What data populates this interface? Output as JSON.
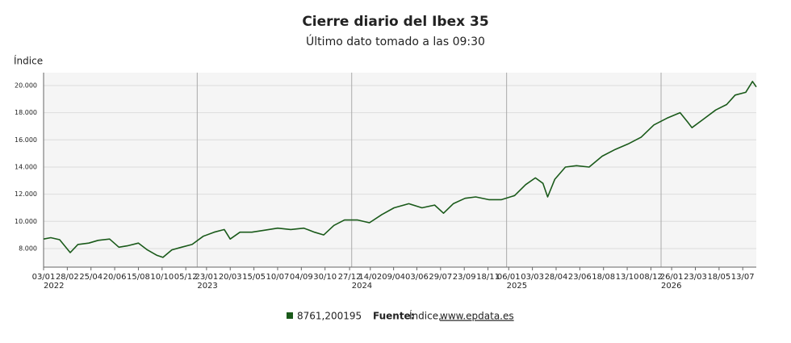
{
  "chart_data": {
    "type": "line",
    "title": "Cierre diario del Ibex 35",
    "subtitle": "Último dato tomado a las 09:30",
    "y_label": "Índice",
    "xlim": [
      "2022-01-03",
      "2026-08-14"
    ],
    "ylim": [
      6630,
      20950
    ],
    "yticks": [
      {
        "value": 8000,
        "label": "8.000"
      },
      {
        "value": 10000,
        "label": "10.000"
      },
      {
        "value": 12000,
        "label": "12.000"
      },
      {
        "value": 14000,
        "label": "14.000"
      },
      {
        "value": 16000,
        "label": "16.000"
      },
      {
        "value": 18000,
        "label": "18.000"
      },
      {
        "value": 20000,
        "label": "20.000"
      }
    ],
    "xticks": [
      {
        "value": "2022-01-03",
        "label": "03/01"
      },
      {
        "value": "2022-02-28",
        "label": "28/02"
      },
      {
        "value": "2022-04-25",
        "label": "25/04"
      },
      {
        "value": "2022-06-20",
        "label": "20/06"
      },
      {
        "value": "2022-08-15",
        "label": "15/08"
      },
      {
        "value": "2022-10-10",
        "label": "10/10"
      },
      {
        "value": "2022-12-05",
        "label": "05/12"
      },
      {
        "value": "2023-01-23",
        "label": "23/01"
      },
      {
        "value": "2023-03-20",
        "label": "20/03"
      },
      {
        "value": "2023-05-15",
        "label": "15/05"
      },
      {
        "value": "2023-07-10",
        "label": "10/07"
      },
      {
        "value": "2023-09-04",
        "label": "04/09"
      },
      {
        "value": "2023-10-30",
        "label": "30/10"
      },
      {
        "value": "2023-12-27",
        "label": "27/12"
      },
      {
        "value": "2024-02-14",
        "label": "14/02"
      },
      {
        "value": "2024-04-09",
        "label": "09/04"
      },
      {
        "value": "2024-06-03",
        "label": "03/06"
      },
      {
        "value": "2024-07-29",
        "label": "29/07"
      },
      {
        "value": "2024-09-23",
        "label": "23/09"
      },
      {
        "value": "2024-11-18",
        "label": "18/11"
      },
      {
        "value": "2025-01-06",
        "label": "06/01"
      },
      {
        "value": "2025-03-03",
        "label": "03/03"
      },
      {
        "value": "2025-04-28",
        "label": "28/04"
      },
      {
        "value": "2025-06-23",
        "label": "23/06"
      },
      {
        "value": "2025-08-18",
        "label": "18/08"
      },
      {
        "value": "2025-10-13",
        "label": "13/10"
      },
      {
        "value": "2025-12-08",
        "label": "08/12"
      },
      {
        "value": "2026-01-26",
        "label": "26/01"
      },
      {
        "value": "2026-03-23",
        "label": "23/03"
      },
      {
        "value": "2026-05-18",
        "label": "18/05"
      },
      {
        "value": "2026-07-13",
        "label": "13/07"
      }
    ],
    "year_ticks": [
      {
        "value": "2022-01-03",
        "label": "2022"
      },
      {
        "value": "2023-01-01",
        "label": "2023"
      },
      {
        "value": "2024-01-01",
        "label": "2024"
      },
      {
        "value": "2025-01-01",
        "label": "2025"
      },
      {
        "value": "2026-01-01",
        "label": "2026"
      }
    ],
    "x": [
      "2022-01-03",
      "2022-01-20",
      "2022-02-10",
      "2022-03-07",
      "2022-03-25",
      "2022-04-20",
      "2022-05-12",
      "2022-06-08",
      "2022-06-30",
      "2022-07-20",
      "2022-08-15",
      "2022-09-05",
      "2022-09-28",
      "2022-10-12",
      "2022-11-02",
      "2022-11-25",
      "2022-12-20",
      "2023-01-15",
      "2023-02-10",
      "2023-03-06",
      "2023-03-20",
      "2023-04-12",
      "2023-05-10",
      "2023-06-10",
      "2023-07-10",
      "2023-08-10",
      "2023-09-10",
      "2023-10-05",
      "2023-10-27",
      "2023-11-20",
      "2023-12-15",
      "2024-01-15",
      "2024-02-12",
      "2024-03-12",
      "2024-04-10",
      "2024-05-15",
      "2024-06-15",
      "2024-07-15",
      "2024-08-05",
      "2024-08-28",
      "2024-09-25",
      "2024-10-20",
      "2024-11-20",
      "2024-12-20",
      "2025-01-20",
      "2025-02-15",
      "2025-03-10",
      "2025-03-28",
      "2025-04-08",
      "2025-04-25",
      "2025-05-20",
      "2025-06-15",
      "2025-07-15",
      "2025-08-15",
      "2025-09-15",
      "2025-10-15",
      "2025-11-15",
      "2025-12-15",
      "2026-01-15",
      "2026-02-15",
      "2026-03-05",
      "2026-03-15",
      "2026-04-10",
      "2026-05-10",
      "2026-06-05",
      "2026-06-25",
      "2026-07-20",
      "2026-08-05",
      "2026-08-14"
    ],
    "series": [
      {
        "name": "8761,200195",
        "color": "#1a5a1a",
        "values": [
          8700,
          8800,
          8650,
          7700,
          8300,
          8400,
          8600,
          8700,
          8100,
          8200,
          8400,
          7900,
          7500,
          7350,
          7900,
          8100,
          8300,
          8900,
          9200,
          9400,
          8700,
          9200,
          9200,
          9350,
          9500,
          9400,
          9500,
          9200,
          9000,
          9700,
          10100,
          10100,
          9900,
          10500,
          11000,
          11300,
          11000,
          11200,
          10600,
          11300,
          11700,
          11800,
          11600,
          11600,
          11900,
          12700,
          13200,
          12800,
          11800,
          13100,
          14000,
          14100,
          14000,
          14800,
          15300,
          15700,
          16200,
          17100,
          17600,
          18000,
          17300,
          16900,
          17500,
          18200,
          18600,
          19300,
          19500,
          20300,
          19900
        ]
      }
    ]
  },
  "legend_entry": "8761,200195",
  "source_label": "Fuente:",
  "source_name": "Índice,",
  "source_link": "www.epdata.es"
}
